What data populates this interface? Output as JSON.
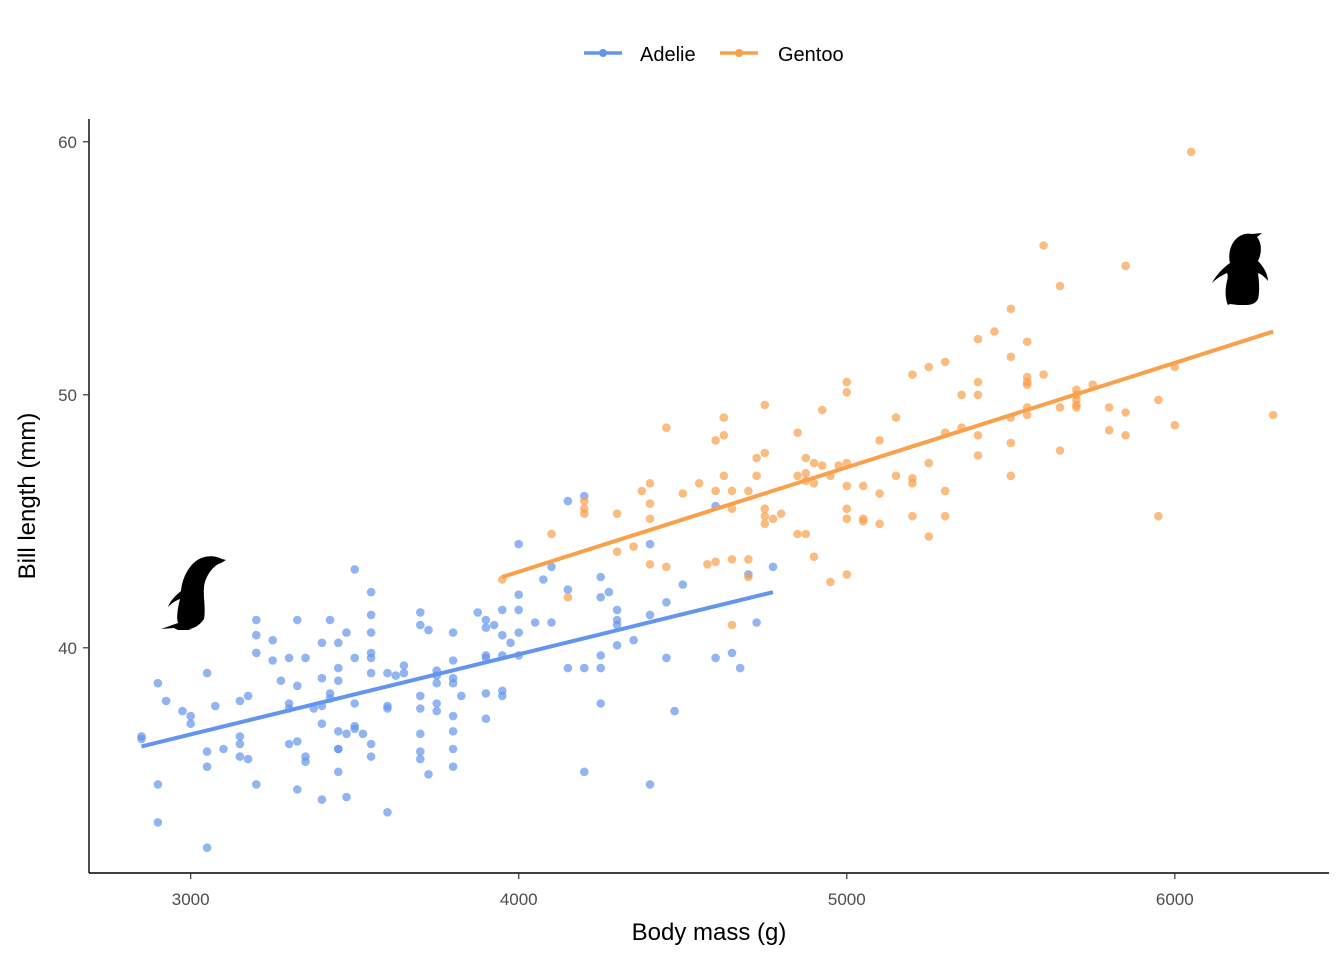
{
  "chart_data": {
    "type": "scatter",
    "title": "",
    "xlabel": "Body mass (g)",
    "ylabel": "Bill length (mm)",
    "xlim": [
      2690,
      6470
    ],
    "ylim": [
      31.1,
      60.9
    ],
    "xticks": [
      3000,
      4000,
      5000,
      6000
    ],
    "yticks": [
      40,
      50,
      60
    ],
    "grid": false,
    "legend_position": "top",
    "series": [
      {
        "name": "Adelie",
        "color": "#6495ED",
        "trend": [
          [
            2850,
            36.1
          ],
          [
            4775,
            42.2
          ]
        ],
        "points": [
          [
            2850,
            36.5
          ],
          [
            2850,
            36.4
          ],
          [
            2900,
            38.6
          ],
          [
            2900,
            34.6
          ],
          [
            2900,
            33.1
          ],
          [
            2925,
            37.9
          ],
          [
            2975,
            37.5
          ],
          [
            3000,
            37.3
          ],
          [
            3000,
            37.0
          ],
          [
            3050,
            39.0
          ],
          [
            3050,
            35.9
          ],
          [
            3050,
            35.3
          ],
          [
            3050,
            32.1
          ],
          [
            3075,
            37.7
          ],
          [
            3100,
            36.0
          ],
          [
            3150,
            37.9
          ],
          [
            3150,
            36.2
          ],
          [
            3150,
            36.5
          ],
          [
            3150,
            35.7
          ],
          [
            3175,
            38.1
          ],
          [
            3175,
            35.6
          ],
          [
            3200,
            41.1
          ],
          [
            3200,
            40.5
          ],
          [
            3200,
            39.8
          ],
          [
            3200,
            34.6
          ],
          [
            3250,
            40.3
          ],
          [
            3250,
            39.5
          ],
          [
            3275,
            38.7
          ],
          [
            3300,
            39.6
          ],
          [
            3300,
            37.8
          ],
          [
            3300,
            37.6
          ],
          [
            3300,
            36.2
          ],
          [
            3325,
            41.1
          ],
          [
            3325,
            38.5
          ],
          [
            3325,
            36.3
          ],
          [
            3325,
            34.4
          ],
          [
            3350,
            39.6
          ],
          [
            3350,
            35.7
          ],
          [
            3350,
            35.5
          ],
          [
            3375,
            37.6
          ],
          [
            3400,
            40.2
          ],
          [
            3400,
            38.8
          ],
          [
            3400,
            37.7
          ],
          [
            3400,
            37.0
          ],
          [
            3400,
            34.0
          ],
          [
            3425,
            41.1
          ],
          [
            3425,
            38.2
          ],
          [
            3425,
            38.0
          ],
          [
            3450,
            40.2
          ],
          [
            3450,
            39.2
          ],
          [
            3450,
            38.7
          ],
          [
            3450,
            36.7
          ],
          [
            3450,
            36.0
          ],
          [
            3450,
            36.0
          ],
          [
            3450,
            35.1
          ],
          [
            3475,
            40.6
          ],
          [
            3475,
            36.6
          ],
          [
            3475,
            34.1
          ],
          [
            3500,
            43.1
          ],
          [
            3500,
            39.6
          ],
          [
            3500,
            37.8
          ],
          [
            3500,
            36.9
          ],
          [
            3500,
            36.8
          ],
          [
            3525,
            36.6
          ],
          [
            3550,
            42.2
          ],
          [
            3550,
            41.3
          ],
          [
            3550,
            40.6
          ],
          [
            3550,
            39.8
          ],
          [
            3550,
            39.6
          ],
          [
            3550,
            39.0
          ],
          [
            3550,
            36.2
          ],
          [
            3550,
            35.7
          ],
          [
            3600,
            39.0
          ],
          [
            3600,
            37.7
          ],
          [
            3600,
            37.6
          ],
          [
            3600,
            33.5
          ],
          [
            3625,
            38.9
          ],
          [
            3650,
            39.3
          ],
          [
            3650,
            39.0
          ],
          [
            3700,
            41.4
          ],
          [
            3700,
            40.9
          ],
          [
            3700,
            38.1
          ],
          [
            3700,
            37.6
          ],
          [
            3700,
            36.6
          ],
          [
            3700,
            35.6
          ],
          [
            3700,
            35.9
          ],
          [
            3725,
            40.7
          ],
          [
            3725,
            35.0
          ],
          [
            3750,
            39.1
          ],
          [
            3750,
            38.9
          ],
          [
            3750,
            38.6
          ],
          [
            3750,
            37.8
          ],
          [
            3750,
            37.5
          ],
          [
            3800,
            40.6
          ],
          [
            3800,
            39.5
          ],
          [
            3800,
            38.8
          ],
          [
            3800,
            38.6
          ],
          [
            3800,
            37.3
          ],
          [
            3800,
            36.7
          ],
          [
            3800,
            36.0
          ],
          [
            3800,
            35.3
          ],
          [
            3825,
            38.1
          ],
          [
            3875,
            41.4
          ],
          [
            3900,
            41.1
          ],
          [
            3900,
            40.8
          ],
          [
            3900,
            39.7
          ],
          [
            3900,
            39.6
          ],
          [
            3900,
            38.2
          ],
          [
            3900,
            37.2
          ],
          [
            3925,
            40.9
          ],
          [
            3950,
            41.5
          ],
          [
            3950,
            40.5
          ],
          [
            3950,
            39.7
          ],
          [
            3950,
            38.3
          ],
          [
            3950,
            38.1
          ],
          [
            3975,
            40.2
          ],
          [
            4000,
            44.1
          ],
          [
            4000,
            42.1
          ],
          [
            4000,
            41.5
          ],
          [
            4000,
            40.6
          ],
          [
            4000,
            39.7
          ],
          [
            4050,
            41.0
          ],
          [
            4075,
            42.7
          ],
          [
            4100,
            43.2
          ],
          [
            4100,
            41.0
          ],
          [
            4150,
            45.8
          ],
          [
            4150,
            42.3
          ],
          [
            4150,
            39.2
          ],
          [
            4200,
            46.0
          ],
          [
            4200,
            39.2
          ],
          [
            4200,
            35.1
          ],
          [
            4250,
            42.8
          ],
          [
            4250,
            42.0
          ],
          [
            4250,
            39.7
          ],
          [
            4250,
            39.2
          ],
          [
            4250,
            37.8
          ],
          [
            4275,
            42.2
          ],
          [
            4300,
            41.5
          ],
          [
            4300,
            41.1
          ],
          [
            4300,
            40.9
          ],
          [
            4300,
            40.1
          ],
          [
            4350,
            40.3
          ],
          [
            4400,
            44.1
          ],
          [
            4400,
            41.3
          ],
          [
            4400,
            34.6
          ],
          [
            4450,
            41.8
          ],
          [
            4450,
            39.6
          ],
          [
            4475,
            37.5
          ],
          [
            4500,
            42.5
          ],
          [
            4600,
            45.6
          ],
          [
            4600,
            39.6
          ],
          [
            4650,
            39.8
          ],
          [
            4675,
            39.2
          ],
          [
            4700,
            42.9
          ],
          [
            4725,
            41.0
          ],
          [
            4775,
            43.2
          ]
        ]
      },
      {
        "name": "Gentoo",
        "color": "#F8A04A",
        "trend": [
          [
            3950,
            42.8
          ],
          [
            6300,
            52.5
          ]
        ],
        "points": [
          [
            3950,
            42.7
          ],
          [
            4100,
            44.5
          ],
          [
            4150,
            42.0
          ],
          [
            4200,
            45.8
          ],
          [
            4200,
            45.5
          ],
          [
            4200,
            45.3
          ],
          [
            4300,
            45.3
          ],
          [
            4300,
            43.8
          ],
          [
            4350,
            44.0
          ],
          [
            4375,
            46.2
          ],
          [
            4400,
            46.5
          ],
          [
            4400,
            45.7
          ],
          [
            4400,
            45.1
          ],
          [
            4400,
            43.3
          ],
          [
            4450,
            48.7
          ],
          [
            4450,
            43.2
          ],
          [
            4500,
            46.1
          ],
          [
            4550,
            46.5
          ],
          [
            4575,
            43.3
          ],
          [
            4600,
            48.2
          ],
          [
            4600,
            46.2
          ],
          [
            4600,
            43.4
          ],
          [
            4625,
            49.1
          ],
          [
            4625,
            48.4
          ],
          [
            4625,
            46.8
          ],
          [
            4650,
            46.2
          ],
          [
            4650,
            45.5
          ],
          [
            4650,
            43.5
          ],
          [
            4650,
            40.9
          ],
          [
            4700,
            46.2
          ],
          [
            4700,
            43.5
          ],
          [
            4700,
            42.8
          ],
          [
            4725,
            47.5
          ],
          [
            4725,
            46.8
          ],
          [
            4750,
            49.6
          ],
          [
            4750,
            47.7
          ],
          [
            4750,
            45.5
          ],
          [
            4750,
            45.2
          ],
          [
            4750,
            44.9
          ],
          [
            4775,
            45.1
          ],
          [
            4800,
            45.3
          ],
          [
            4850,
            48.5
          ],
          [
            4850,
            46.8
          ],
          [
            4850,
            44.5
          ],
          [
            4875,
            47.5
          ],
          [
            4875,
            46.9
          ],
          [
            4875,
            46.6
          ],
          [
            4875,
            44.5
          ],
          [
            4900,
            47.3
          ],
          [
            4900,
            46.5
          ],
          [
            4900,
            43.6
          ],
          [
            4925,
            49.4
          ],
          [
            4925,
            47.2
          ],
          [
            4950,
            46.8
          ],
          [
            4950,
            42.6
          ],
          [
            4975,
            47.2
          ],
          [
            5000,
            50.5
          ],
          [
            5000,
            50.1
          ],
          [
            5000,
            47.3
          ],
          [
            5000,
            46.4
          ],
          [
            5000,
            45.5
          ],
          [
            5000,
            45.1
          ],
          [
            5000,
            42.9
          ],
          [
            5050,
            46.4
          ],
          [
            5050,
            45.1
          ],
          [
            5050,
            45.0
          ],
          [
            5100,
            48.2
          ],
          [
            5100,
            46.1
          ],
          [
            5100,
            44.9
          ],
          [
            5150,
            49.1
          ],
          [
            5150,
            46.8
          ],
          [
            5200,
            50.8
          ],
          [
            5200,
            46.7
          ],
          [
            5200,
            46.5
          ],
          [
            5200,
            45.2
          ],
          [
            5250,
            51.1
          ],
          [
            5250,
            47.3
          ],
          [
            5250,
            44.4
          ],
          [
            5300,
            51.3
          ],
          [
            5300,
            48.5
          ],
          [
            5300,
            46.2
          ],
          [
            5300,
            45.2
          ],
          [
            5350,
            50.0
          ],
          [
            5350,
            48.7
          ],
          [
            5400,
            52.2
          ],
          [
            5400,
            50.5
          ],
          [
            5400,
            50.0
          ],
          [
            5400,
            48.4
          ],
          [
            5400,
            47.6
          ],
          [
            5450,
            52.5
          ],
          [
            5500,
            53.4
          ],
          [
            5500,
            51.5
          ],
          [
            5500,
            49.1
          ],
          [
            5500,
            48.1
          ],
          [
            5500,
            46.8
          ],
          [
            5550,
            52.1
          ],
          [
            5550,
            50.7
          ],
          [
            5550,
            50.5
          ],
          [
            5550,
            50.4
          ],
          [
            5550,
            49.5
          ],
          [
            5550,
            49.2
          ],
          [
            5600,
            55.9
          ],
          [
            5600,
            50.8
          ],
          [
            5650,
            54.3
          ],
          [
            5650,
            49.5
          ],
          [
            5650,
            47.8
          ],
          [
            5700,
            50.2
          ],
          [
            5700,
            50.0
          ],
          [
            5700,
            49.8
          ],
          [
            5700,
            49.6
          ],
          [
            5700,
            49.5
          ],
          [
            5750,
            50.4
          ],
          [
            5800,
            49.5
          ],
          [
            5800,
            48.6
          ],
          [
            5850,
            55.1
          ],
          [
            5850,
            49.3
          ],
          [
            5850,
            48.4
          ],
          [
            5950,
            49.8
          ],
          [
            5950,
            45.2
          ],
          [
            6000,
            51.1
          ],
          [
            6000,
            48.8
          ],
          [
            6050,
            59.6
          ],
          [
            6300,
            49.2
          ]
        ]
      }
    ]
  }
}
